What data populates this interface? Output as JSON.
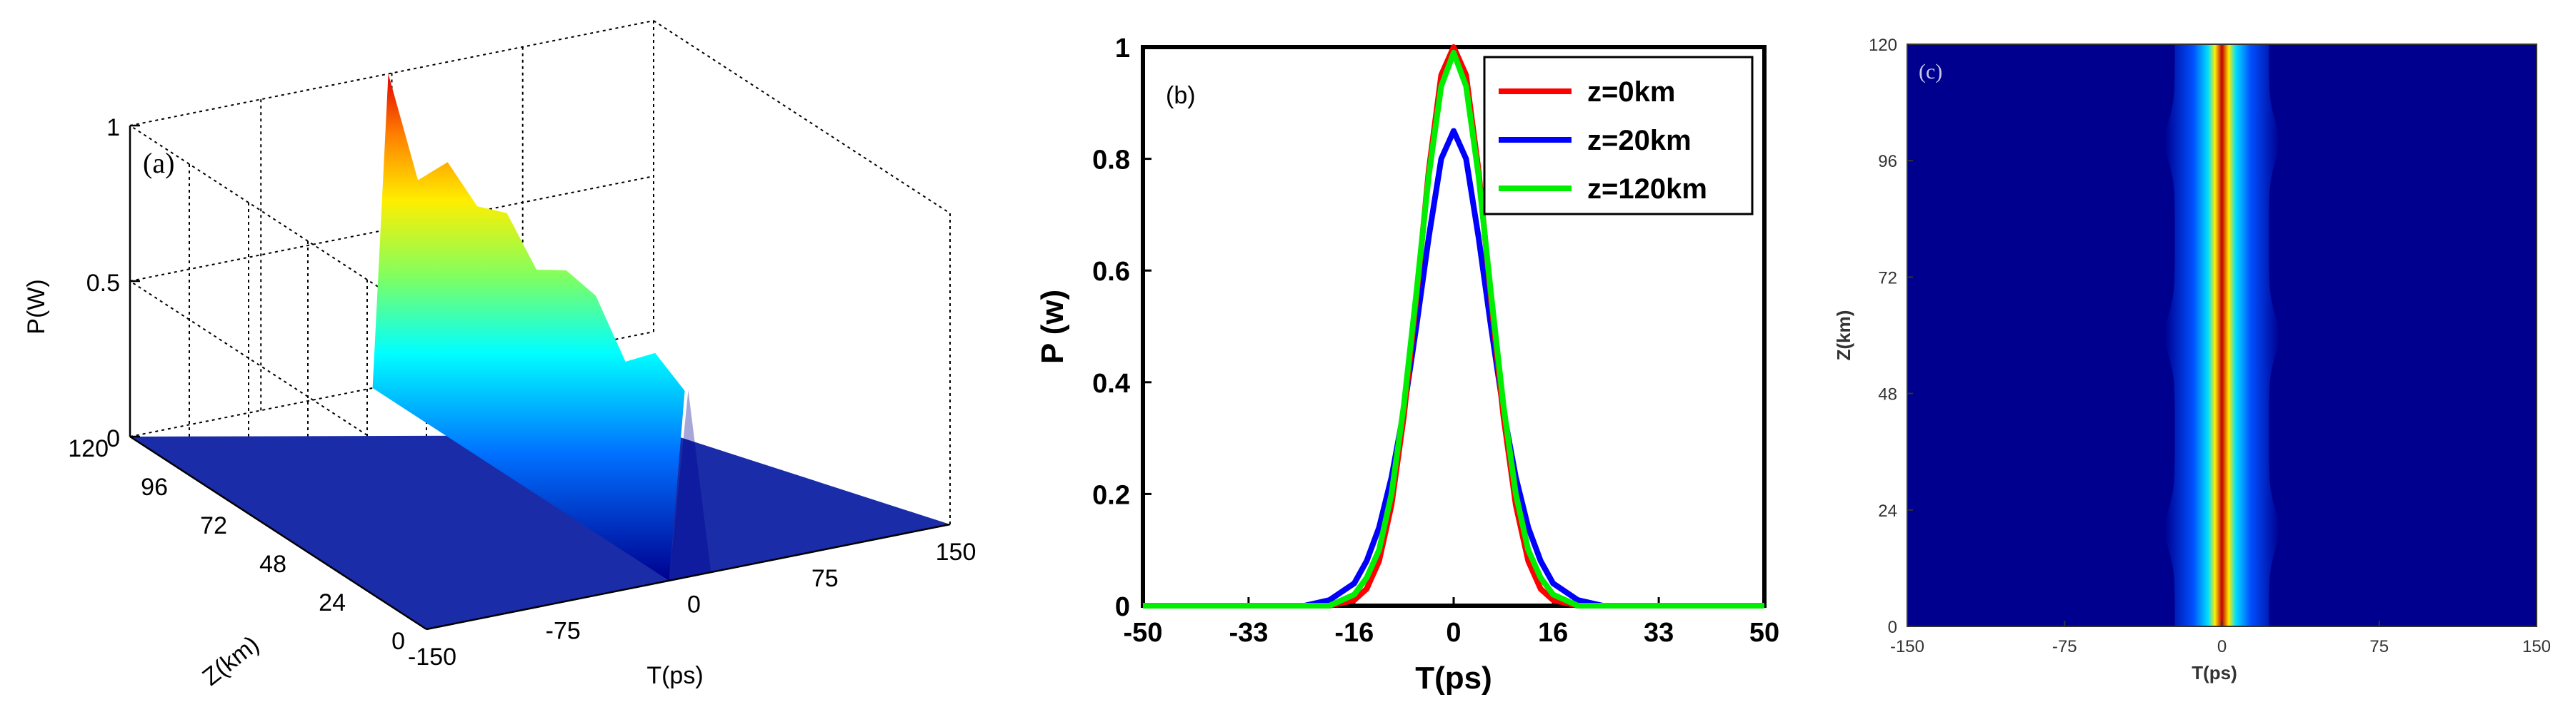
{
  "chart_data": [
    {
      "type": "surface3d",
      "panel_label": "(a)",
      "zlabel": "P(W)",
      "ylabel": "Z(km)",
      "xlabel": "T(ps)",
      "z_ticks": [
        "0",
        "0.5",
        "1"
      ],
      "y_ticks": [
        "0",
        "24",
        "48",
        "72",
        "96",
        "120"
      ],
      "x_ticks": [
        "-150",
        "-75",
        "0",
        "75",
        "150"
      ],
      "zlim": [
        0,
        1
      ],
      "ylim": [
        0,
        120
      ],
      "xlim": [
        -150,
        150
      ],
      "pulse_peak_vs_distance": {
        "z_km": [
          0,
          12,
          24,
          36,
          48,
          60,
          72,
          84,
          96,
          108,
          120
        ],
        "peak_W": [
          0.6,
          0.66,
          0.57,
          0.72,
          0.74,
          0.68,
          0.8,
          0.76,
          0.84,
          0.72,
          1.0
        ]
      },
      "pulse_fwhm_ps": 18,
      "colormap": "jet"
    },
    {
      "type": "line",
      "panel_label": "(b)",
      "xlabel": "T(ps)",
      "ylabel": "P (w)",
      "xlim": [
        -50,
        50
      ],
      "ylim": [
        0,
        1
      ],
      "x_ticks": [
        "-50",
        "-33",
        "-16",
        "0",
        "16",
        "33",
        "50"
      ],
      "y_ticks": [
        "0",
        "0.2",
        "0.4",
        "0.6",
        "0.8",
        "1"
      ],
      "x": [
        -50,
        -24,
        -20,
        -16,
        -14,
        -12,
        -10,
        -8,
        -6,
        -4,
        -2,
        0,
        2,
        4,
        6,
        8,
        10,
        12,
        14,
        16,
        20,
        24,
        50
      ],
      "series": [
        {
          "name": "z=0km",
          "color": "#ff0000",
          "values": [
            0,
            0,
            0,
            0.01,
            0.03,
            0.08,
            0.18,
            0.34,
            0.55,
            0.78,
            0.95,
            1.0,
            0.95,
            0.78,
            0.55,
            0.34,
            0.18,
            0.08,
            0.03,
            0.01,
            0,
            0,
            0
          ]
        },
        {
          "name": "z=20km",
          "color": "#0000ff",
          "values": [
            0,
            0,
            0.01,
            0.04,
            0.08,
            0.14,
            0.23,
            0.35,
            0.5,
            0.66,
            0.8,
            0.85,
            0.8,
            0.66,
            0.5,
            0.35,
            0.23,
            0.14,
            0.08,
            0.04,
            0.01,
            0,
            0
          ]
        },
        {
          "name": "z=120km",
          "color": "#00ee00",
          "values": [
            0,
            0,
            0,
            0.02,
            0.05,
            0.1,
            0.2,
            0.36,
            0.56,
            0.77,
            0.93,
            0.99,
            0.93,
            0.77,
            0.56,
            0.36,
            0.2,
            0.1,
            0.05,
            0.02,
            0,
            0,
            0
          ]
        }
      ],
      "legend": "top-right"
    },
    {
      "type": "heatmap",
      "panel_label": "(c)",
      "xlabel": "T(ps)",
      "ylabel": "Z(km)",
      "xlim": [
        -150,
        150
      ],
      "ylim": [
        0,
        120
      ],
      "x_ticks": [
        "-150",
        "-75",
        "0",
        "75",
        "150"
      ],
      "y_ticks": [
        "0",
        "24",
        "48",
        "72",
        "96",
        "120"
      ],
      "pulse_center_ps": 0,
      "pulse_fwhm_ps": 18,
      "width_peaks_at_z_km": [
        20,
        60,
        100
      ],
      "colormap": "jet"
    }
  ]
}
